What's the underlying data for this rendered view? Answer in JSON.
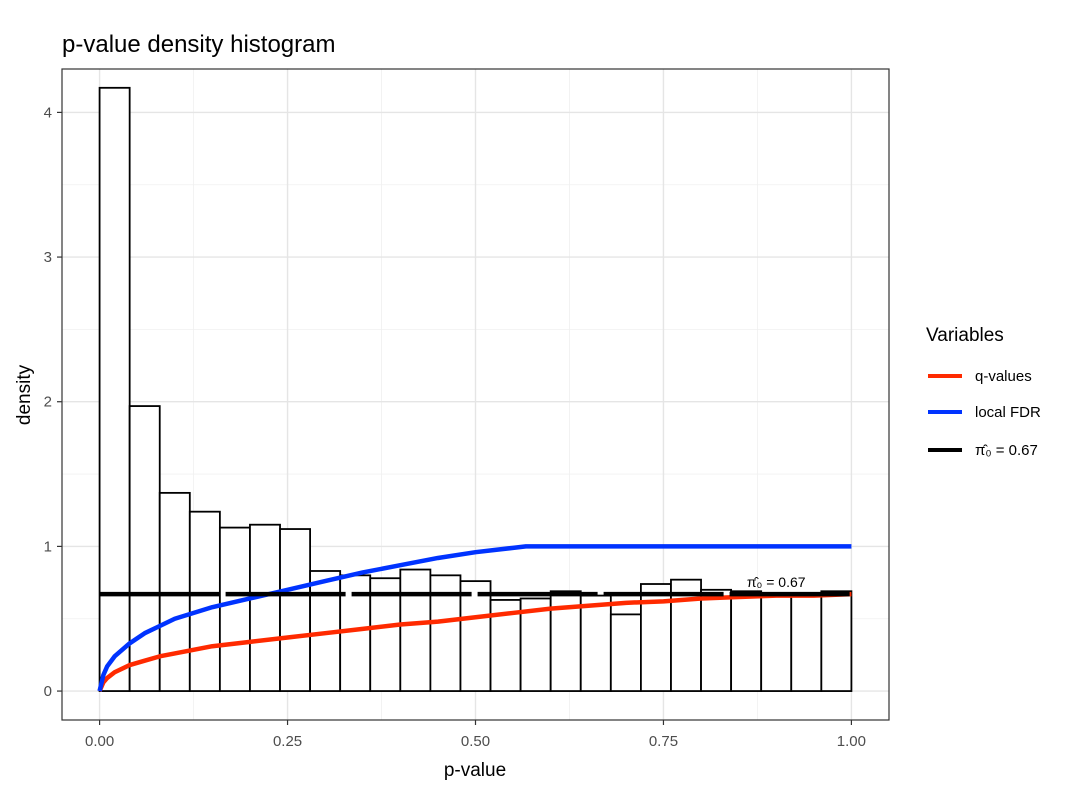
{
  "chart_data": {
    "type": "bar",
    "title": "p-value density histogram",
    "xlabel": "p-value",
    "ylabel": "density",
    "xlim": [
      -0.05,
      1.05
    ],
    "ylim": [
      -0.2,
      4.3
    ],
    "xticks": [
      0.0,
      0.25,
      0.5,
      0.75,
      1.0
    ],
    "xtick_labels": [
      "0.00",
      "0.25",
      "0.50",
      "0.75",
      "1.00"
    ],
    "yticks": [
      0,
      1,
      2,
      3,
      4
    ],
    "ytick_labels": [
      "0",
      "1",
      "2",
      "3",
      "4"
    ],
    "grid": true,
    "bin_width": 0.04,
    "bins_start": [
      0.0,
      0.04,
      0.08,
      0.12,
      0.16,
      0.2,
      0.24,
      0.28,
      0.32,
      0.36,
      0.4,
      0.44,
      0.48,
      0.52,
      0.56,
      0.6,
      0.64,
      0.68,
      0.72,
      0.76,
      0.8,
      0.84,
      0.88,
      0.92,
      0.96
    ],
    "values": [
      4.17,
      1.97,
      1.37,
      1.24,
      1.13,
      1.15,
      1.12,
      0.83,
      0.8,
      0.78,
      0.84,
      0.8,
      0.76,
      0.63,
      0.64,
      0.69,
      0.66,
      0.53,
      0.74,
      0.77,
      0.7,
      0.69,
      0.66,
      0.66,
      0.69
    ],
    "series": [
      {
        "name": "q-values",
        "color": "#ff2a00",
        "x": [
          0.0,
          0.005,
          0.01,
          0.02,
          0.04,
          0.06,
          0.08,
          0.1,
          0.15,
          0.2,
          0.25,
          0.3,
          0.35,
          0.4,
          0.45,
          0.5,
          0.55,
          0.6,
          0.65,
          0.7,
          0.75,
          0.8,
          0.85,
          0.9,
          0.95,
          1.0
        ],
        "y": [
          0.0,
          0.06,
          0.09,
          0.13,
          0.18,
          0.21,
          0.24,
          0.26,
          0.31,
          0.34,
          0.37,
          0.4,
          0.43,
          0.46,
          0.48,
          0.51,
          0.54,
          0.57,
          0.59,
          0.61,
          0.62,
          0.64,
          0.65,
          0.66,
          0.66,
          0.67
        ]
      },
      {
        "name": "local FDR",
        "color": "#0033ff",
        "x": [
          0.0,
          0.005,
          0.01,
          0.02,
          0.04,
          0.06,
          0.08,
          0.1,
          0.15,
          0.2,
          0.25,
          0.3,
          0.35,
          0.4,
          0.45,
          0.5,
          0.55,
          0.567,
          0.6,
          0.7,
          0.8,
          0.9,
          1.0
        ],
        "y": [
          0.0,
          0.11,
          0.17,
          0.24,
          0.33,
          0.4,
          0.45,
          0.5,
          0.58,
          0.64,
          0.7,
          0.76,
          0.82,
          0.87,
          0.92,
          0.96,
          0.99,
          1.0,
          1.0,
          1.0,
          1.0,
          1.0,
          1.0
        ]
      },
      {
        "name": "π̂₀ = 0.67",
        "color": "#000000",
        "dashed": true,
        "x": [
          0.0,
          1.0
        ],
        "y": [
          0.67,
          0.67
        ]
      }
    ],
    "legend": {
      "title": "Variables",
      "placement": "right",
      "items": [
        {
          "label": "q-values",
          "color": "#ff2a00"
        },
        {
          "label": "local FDR",
          "color": "#0033ff"
        },
        {
          "label": "π̂₀ = 0.67",
          "color": "#000000"
        }
      ]
    },
    "annotation": {
      "text": "π̂₀ = 0.67",
      "x": 0.9,
      "y": 0.72
    }
  }
}
